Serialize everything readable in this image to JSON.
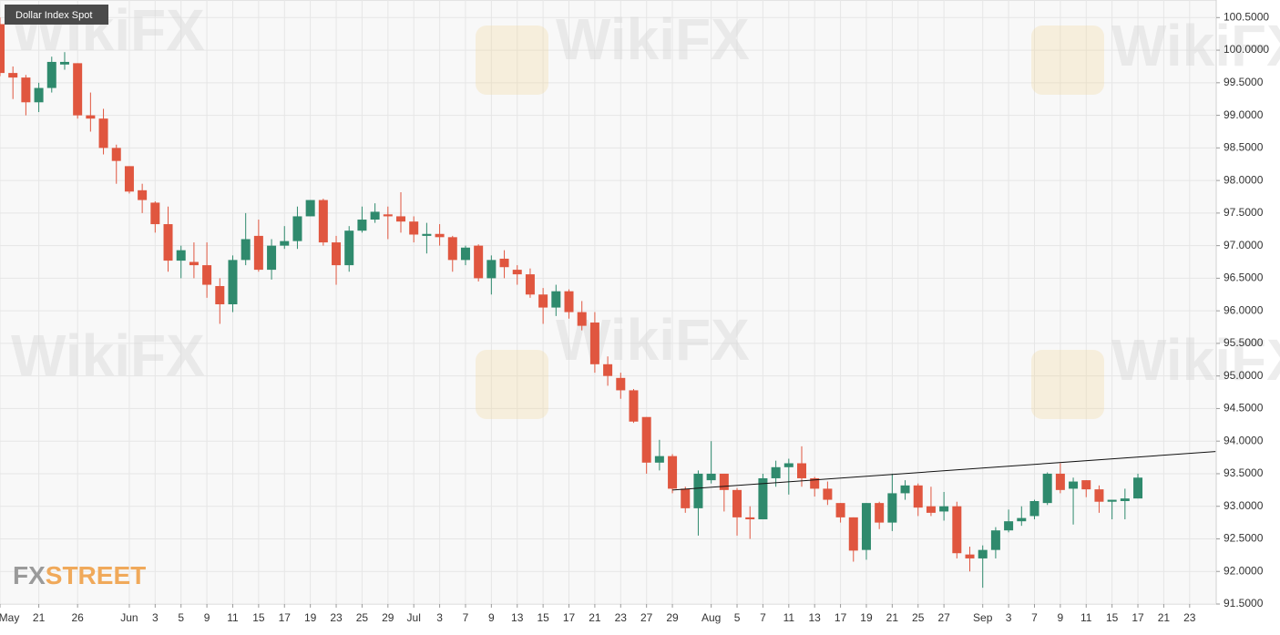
{
  "chart_data": {
    "type": "candlestick",
    "title": "Dollar Index Spot",
    "watermark": "WikiFX",
    "logo_prefix": "FX",
    "logo_suffix": "STREET",
    "up_color": "#2f8a6d",
    "down_color": "#e0563f",
    "grid": true,
    "categories": [
      "May",
      null,
      null,
      "21",
      null,
      null,
      "26",
      null,
      null,
      null,
      "Jun",
      null,
      "3",
      null,
      "5",
      null,
      "9",
      null,
      "11",
      null,
      "15",
      null,
      "17",
      null,
      "19",
      null,
      "23",
      null,
      "25",
      null,
      "29",
      null,
      "Jul",
      null,
      "3",
      null,
      "7",
      null,
      "9",
      null,
      "13",
      null,
      "15",
      null,
      "17",
      null,
      "21",
      null,
      "23",
      null,
      "27",
      null,
      "29",
      null,
      null,
      "Aug",
      null,
      "5",
      null,
      "7",
      null,
      "11",
      null,
      "13",
      null,
      "17",
      null,
      "19",
      null,
      "21",
      null,
      "25",
      null,
      "27",
      null,
      null,
      "Sep",
      null,
      "3",
      null,
      "7",
      null,
      "9",
      null,
      "11",
      null,
      "15",
      null,
      "17",
      null,
      "21",
      null,
      "23",
      null
    ],
    "open": [
      100.4,
      99.65,
      99.58,
      99.2,
      99.42,
      99.78,
      99.8,
      99.0,
      98.95,
      98.5,
      98.22,
      97.85,
      97.66,
      97.33,
      96.77,
      96.75,
      96.7,
      96.38,
      96.1,
      96.78,
      97.15,
      96.63,
      97.0,
      97.07,
      97.45,
      97.7,
      97.05,
      96.7,
      97.23,
      97.4,
      97.48,
      97.45,
      97.37,
      97.15,
      97.18,
      97.13,
      96.78,
      97.0,
      96.5,
      96.8,
      96.63,
      96.56,
      96.25,
      96.05,
      96.3,
      95.98,
      95.82,
      95.18,
      94.97,
      94.78,
      94.37,
      93.67,
      93.77,
      93.27,
      92.97,
      93.4,
      93.5,
      93.25,
      92.83,
      92.8,
      93.43,
      93.6,
      93.66,
      93.43,
      93.27,
      93.05,
      92.83,
      92.33,
      93.05,
      92.75,
      93.2,
      93.32,
      93.0,
      92.92,
      93.0,
      92.26,
      92.2,
      92.33,
      92.63,
      92.77,
      92.85,
      93.05,
      93.5,
      93.27,
      93.4,
      93.26,
      93.07,
      93.08,
      93.12,
      null,
      null,
      null,
      null,
      null
    ],
    "high": [
      100.5,
      99.75,
      99.62,
      99.5,
      99.9,
      99.97,
      99.8,
      99.35,
      99.1,
      98.55,
      98.22,
      97.95,
      97.68,
      97.6,
      97.0,
      97.05,
      97.05,
      96.5,
      96.85,
      97.5,
      97.4,
      97.1,
      97.3,
      97.6,
      97.7,
      97.72,
      97.15,
      97.3,
      97.6,
      97.65,
      97.6,
      97.82,
      97.45,
      97.35,
      97.33,
      97.15,
      97.0,
      97.02,
      96.85,
      96.93,
      96.7,
      96.65,
      96.35,
      96.4,
      96.33,
      96.15,
      95.98,
      95.3,
      95.05,
      94.8,
      94.37,
      94.02,
      93.8,
      93.3,
      93.55,
      94.0,
      93.5,
      93.28,
      93.0,
      93.5,
      93.7,
      93.73,
      93.92,
      93.45,
      93.38,
      93.05,
      92.83,
      93.05,
      93.07,
      93.5,
      93.4,
      93.35,
      93.3,
      93.22,
      93.07,
      92.38,
      92.4,
      92.68,
      92.95,
      93.0,
      93.1,
      93.52,
      93.66,
      93.44,
      93.4,
      93.32,
      93.1,
      93.27,
      93.5,
      null,
      null,
      null,
      null,
      null
    ],
    "low": [
      99.6,
      99.25,
      99.0,
      99.05,
      99.35,
      99.7,
      98.95,
      98.75,
      98.4,
      97.95,
      97.8,
      97.5,
      97.2,
      96.6,
      96.5,
      96.5,
      96.2,
      95.8,
      95.98,
      96.7,
      96.6,
      96.48,
      96.95,
      96.95,
      97.45,
      97.0,
      96.4,
      96.6,
      97.2,
      97.35,
      97.1,
      97.2,
      97.05,
      96.88,
      97.0,
      96.6,
      96.7,
      96.45,
      96.25,
      96.5,
      96.4,
      96.2,
      95.8,
      95.92,
      95.88,
      95.7,
      95.05,
      94.85,
      94.65,
      94.28,
      93.5,
      93.55,
      93.2,
      92.9,
      92.55,
      93.35,
      92.92,
      92.55,
      92.5,
      92.8,
      93.3,
      93.18,
      93.3,
      93.15,
      93.02,
      92.75,
      92.15,
      92.18,
      92.65,
      92.62,
      93.1,
      92.85,
      92.85,
      92.78,
      92.2,
      92.0,
      91.75,
      92.2,
      92.6,
      92.7,
      92.8,
      93.02,
      93.2,
      92.72,
      93.14,
      92.9,
      92.8,
      92.8,
      93.12,
      null,
      null,
      null,
      null,
      null
    ],
    "close": [
      99.65,
      99.58,
      99.2,
      99.42,
      99.82,
      99.82,
      99.0,
      98.95,
      98.5,
      98.3,
      97.83,
      97.7,
      97.33,
      96.77,
      96.93,
      96.7,
      96.4,
      96.1,
      96.78,
      97.1,
      96.63,
      97.0,
      97.07,
      97.45,
      97.7,
      97.05,
      96.7,
      97.23,
      97.4,
      97.52,
      97.45,
      97.37,
      97.17,
      97.18,
      97.13,
      96.78,
      96.97,
      96.5,
      96.78,
      96.67,
      96.56,
      96.25,
      96.05,
      96.3,
      95.98,
      95.77,
      95.18,
      95.0,
      94.78,
      94.3,
      93.67,
      93.77,
      93.27,
      92.97,
      93.5,
      93.5,
      93.25,
      92.83,
      92.8,
      93.43,
      93.6,
      93.66,
      93.43,
      93.27,
      93.1,
      92.83,
      92.32,
      93.05,
      92.75,
      93.2,
      93.32,
      92.98,
      92.9,
      93.0,
      92.28,
      92.2,
      92.33,
      92.63,
      92.77,
      92.82,
      93.08,
      93.5,
      93.25,
      93.38,
      93.26,
      93.07,
      93.1,
      93.12,
      93.44,
      null,
      null,
      null,
      null,
      null
    ],
    "trendline": {
      "x": [
        52,
        94
      ],
      "y": [
        93.25,
        93.84
      ]
    },
    "ylim": [
      91.5,
      100.77
    ],
    "yticks": [
      {
        "value": 91.5,
        "label": "91.5000"
      },
      {
        "value": 92,
        "label": "92.0000"
      },
      {
        "value": 92.5,
        "label": "92.5000"
      },
      {
        "value": 93,
        "label": "93.0000"
      },
      {
        "value": 93.5,
        "label": "93.5000"
      },
      {
        "value": 94,
        "label": "94.0000"
      },
      {
        "value": 94.5,
        "label": "94.5000"
      },
      {
        "value": 95,
        "label": "95.0000"
      },
      {
        "value": 95.5,
        "label": "95.5000"
      },
      {
        "value": 96,
        "label": "96.0000"
      },
      {
        "value": 96.5,
        "label": "96.5000"
      },
      {
        "value": 97,
        "label": "97.0000"
      },
      {
        "value": 97.5,
        "label": "97.5000"
      },
      {
        "value": 98,
        "label": "98.0000"
      },
      {
        "value": 98.5,
        "label": "98.5000"
      },
      {
        "value": 99,
        "label": "99.0000"
      },
      {
        "value": 99.5,
        "label": "99.5000"
      },
      {
        "value": 100,
        "label": "100.0000"
      },
      {
        "value": 100.5,
        "label": "100.5000"
      }
    ]
  }
}
